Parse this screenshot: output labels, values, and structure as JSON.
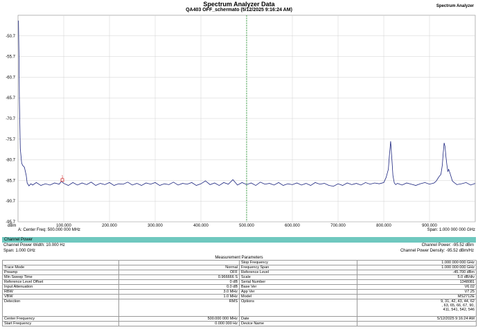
{
  "header": {
    "title": "Spectrum Analyzer Data",
    "subtitle": "QA403 OFF_schermato (5/12/2025 9:16:24 AM)",
    "brand": "Spectrum Analyzer"
  },
  "chart_data": {
    "type": "line",
    "xlabel": "",
    "ylabel": "",
    "y_unit": "dBm",
    "xlim": [
      0,
      1000
    ],
    "ylim": [
      -95.7,
      -45.7
    ],
    "x_ticks": [
      100,
      200,
      300,
      400,
      500,
      600,
      700,
      800,
      900
    ],
    "x_tick_labels": [
      "100.000",
      "200.000",
      "300.000",
      "400.000",
      "500.000",
      "600.000",
      "700.000",
      "800.000",
      "900.000"
    ],
    "y_ticks": [
      -50.7,
      -55.7,
      -60.7,
      -65.7,
      -70.7,
      -75.7,
      -80.7,
      -85.7,
      -90.7,
      -95.7
    ],
    "y_tick_labels": [
      "-50.7",
      "-55.7",
      "-60.7",
      "-65.7",
      "-70.7",
      "-75.7",
      "-80.7",
      "-85.7",
      "-90.7",
      "-95.7"
    ],
    "grid": true,
    "center_marker_x": 500,
    "marker": {
      "label": "1",
      "x": 97,
      "y": -85.6
    },
    "footer_left": "A: Center Freq: 500.000 000 MHz",
    "footer_right": "Span: 1.000 000 000 GHz",
    "series": [
      {
        "color": "#1a237e",
        "x": [
          1,
          2,
          3,
          5,
          8,
          10,
          14,
          18,
          20,
          24,
          28,
          32,
          40,
          50,
          60,
          70,
          80,
          90,
          95,
          100,
          110,
          120,
          130,
          140,
          150,
          160,
          170,
          180,
          190,
          200,
          210,
          220,
          230,
          240,
          250,
          260,
          270,
          280,
          290,
          300,
          310,
          320,
          330,
          340,
          350,
          360,
          370,
          380,
          390,
          400,
          410,
          420,
          430,
          440,
          450,
          460,
          470,
          480,
          490,
          500,
          510,
          520,
          530,
          540,
          550,
          560,
          570,
          580,
          590,
          600,
          610,
          620,
          630,
          640,
          650,
          660,
          670,
          680,
          690,
          700,
          710,
          720,
          730,
          740,
          750,
          760,
          770,
          780,
          790,
          800,
          805,
          810,
          812,
          815,
          818,
          820,
          823,
          826,
          830,
          840,
          850,
          860,
          870,
          880,
          890,
          900,
          910,
          915,
          920,
          925,
          928,
          930,
          932,
          934,
          936,
          938,
          940,
          942,
          945,
          950,
          955,
          960,
          970,
          980,
          990,
          1000
        ],
        "y": [
          -47,
          -55,
          -66,
          -78,
          -81.5,
          -82,
          -82.5,
          -84.5,
          -86.3,
          -87,
          -86.5,
          -86.8,
          -86.2,
          -86.9,
          -86.5,
          -86.8,
          -86.3,
          -86.6,
          -85.9,
          -86.4,
          -86.9,
          -86.2,
          -86.8,
          -86.3,
          -86.7,
          -86.1,
          -86.9,
          -86.4,
          -86.7,
          -86.2,
          -86.9,
          -86.5,
          -86.6,
          -86.1,
          -86.8,
          -86.4,
          -86.9,
          -86.3,
          -86.6,
          -86.2,
          -86.9,
          -86.5,
          -86.7,
          -86.1,
          -86.8,
          -86.4,
          -86.6,
          -86.2,
          -86.9,
          -86.5,
          -85.8,
          -86.7,
          -86.3,
          -86.9,
          -86.2,
          -86.6,
          -85.5,
          -86.8,
          -86.2,
          -86.7,
          -86.3,
          -86.9,
          -86.1,
          -86.6,
          -86.4,
          -86.8,
          -86.2,
          -86.9,
          -86.5,
          -86.7,
          -86.3,
          -86.8,
          -86.4,
          -86.9,
          -86.2,
          -86.6,
          -86.4,
          -86.9,
          -87.1,
          -86.5,
          -86.9,
          -86.3,
          -86.7,
          -86.4,
          -86.8,
          -86.2,
          -86.6,
          -86.3,
          -86.5,
          -86.2,
          -85,
          -83,
          -80,
          -76.2,
          -81,
          -84.5,
          -86.3,
          -86.7,
          -86.4,
          -86.8,
          -86.3,
          -86.6,
          -86.9,
          -86.5,
          -86.2,
          -86.6,
          -86.3,
          -85.8,
          -84.9,
          -84.2,
          -82,
          -79,
          -76.6,
          -77.5,
          -80,
          -81.9,
          -83.5,
          -83,
          -84,
          -85.8,
          -86.3,
          -86.7,
          -86.5,
          -86.2,
          -86.8,
          -86.4
        ]
      }
    ]
  },
  "channel_power": {
    "header": "Channel Power",
    "width_label": "Channel Power Width: 10.000 Hz",
    "span_label": "Span: 1.000 GHz",
    "power_label": "Channel Power: -95.52 dBm",
    "density_label": "Channel Power Density: -95.52 dBm/Hz"
  },
  "measurement": {
    "title": "Measurement Parameters",
    "rows": [
      [
        "",
        "",
        "Stop Frequency",
        "1.000 000 000 GHz"
      ],
      [
        "Trace Mode",
        "Normal",
        "Frequency Span",
        "1.000 000 000 GHz"
      ],
      [
        "Preamp",
        "OFF",
        "Reference Level",
        "-45.700 dBm"
      ],
      [
        "Min Sweep Time",
        "0.966666 S",
        "Scale",
        "5.0 dB/div"
      ],
      [
        "Reference Level Offset",
        "0 dB",
        "Serial Number",
        "1348081"
      ],
      [
        "Input Attenuation",
        "0.0 dB",
        "Base Ver",
        "V6.02"
      ],
      [
        "RBW",
        "3.0 MHz",
        "App Ver",
        "V7.25"
      ],
      [
        "VBW",
        "1.0 MHz",
        "Model",
        "MS2712E"
      ],
      [
        "Detection",
        "RMS",
        "Options",
        "9, 31, 42, 43, 44, 62\n, 63, 65, 66, 67, 90,\n411, 541, 542, 546\n\n"
      ],
      [
        "Center Frequency",
        "500.000 000 MHz",
        "Date",
        "5/12/2025 9:16:24 AM"
      ],
      [
        "Start Frequency",
        "0.000 000 Hz",
        "Device Name",
        ""
      ]
    ]
  }
}
